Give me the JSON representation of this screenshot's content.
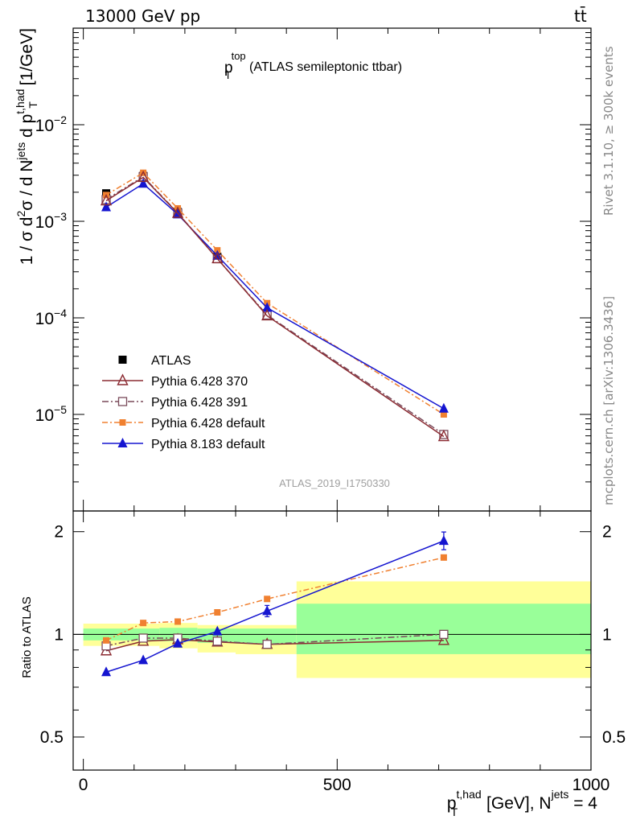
{
  "header": {
    "energy_label": "13000 GeV pp",
    "process_label": "tt̄"
  },
  "side_labels": {
    "rivet": "Rivet 3.1.10, ≥ 300k events",
    "mcplots": "mcplots.cern.ch [arXiv:1306.3436]"
  },
  "chart_data": [
    {
      "type": "line",
      "panel": "main",
      "title": {
        "main": "p",
        "sup": "top",
        "sub": "T",
        "rest": "(ATLAS semileptonic ttbar)"
      },
      "ylabel": {
        "a": "1 / σ d",
        "a_sup": "2",
        "b": "σ / d N",
        "b_sup": "jets",
        "c": " d p",
        "c_sup": "t,had",
        "c_sub": "T",
        "d": " [1/GeV]"
      },
      "yscale": "log",
      "ylim": [
        1e-06,
        0.1
      ],
      "xlim": [
        -20,
        1000
      ],
      "yticks": [
        {
          "value": 0.01,
          "base": "10",
          "exp": "−2"
        },
        {
          "value": 0.001,
          "base": "10",
          "exp": "−3"
        },
        {
          "value": 0.0001,
          "base": "10",
          "exp": "−4"
        },
        {
          "value": 1e-05,
          "base": "10",
          "exp": "−5"
        }
      ],
      "watermark": "ATLAS_2019_I1750330",
      "x": [
        45,
        118,
        186,
        264,
        362,
        710
      ],
      "series": [
        {
          "name": "ATLAS",
          "color": "#000000",
          "values": [
            0.00195,
            0.00295,
            0.00125,
            0.00043,
            0.000112,
            6.2e-06
          ]
        },
        {
          "name": "Pythia 6.428 370",
          "color": "#8b2b32",
          "values": [
            0.00163,
            0.00285,
            0.00121,
            0.00041,
            0.000105,
            5.9e-06
          ]
        },
        {
          "name": "Pythia 6.428 391",
          "color": "#7a4a5a",
          "values": [
            0.00168,
            0.0029,
            0.00122,
            0.00041,
            0.000107,
            6.2e-06
          ]
        },
        {
          "name": "Pythia 6.428 default",
          "color": "#f08030",
          "values": [
            0.00187,
            0.00318,
            0.00136,
            0.0005,
            0.000142,
            1e-05
          ]
        },
        {
          "name": "Pythia 8.183 default",
          "color": "#1515d0",
          "values": [
            0.0014,
            0.00245,
            0.00118,
            0.00044,
            0.000127,
            1.15e-05
          ]
        }
      ]
    },
    {
      "type": "line",
      "panel": "ratio",
      "ylabel": "Ratio to ATLAS",
      "yscale": "log",
      "ylim": [
        0.4,
        2.3
      ],
      "yticks": [
        {
          "value": 0.5,
          "label": "0.5"
        },
        {
          "value": 1,
          "label": "1"
        },
        {
          "value": 2,
          "label": "2"
        }
      ],
      "xticks": [
        {
          "value": 0,
          "label": "0"
        },
        {
          "value": 500,
          "label": "500"
        },
        {
          "value": 1000,
          "label": "1000"
        }
      ],
      "xlabel": {
        "a": "p",
        "a_sup": "t,had",
        "a_sub": "T",
        "b": " [GeV], N",
        "b_sup": "jets",
        "c": " = 4"
      },
      "bins": [
        {
          "lo": 0,
          "hi": 90,
          "yellow": [
            0.925,
            1.075
          ],
          "green": [
            0.96,
            1.04
          ]
        },
        {
          "lo": 90,
          "hi": 150,
          "yellow": [
            0.925,
            1.075
          ],
          "green": [
            0.96,
            1.04
          ]
        },
        {
          "lo": 150,
          "hi": 225,
          "yellow": [
            0.91,
            1.08
          ],
          "green": [
            0.955,
            1.045
          ]
        },
        {
          "lo": 225,
          "hi": 300,
          "yellow": [
            0.885,
            1.065
          ],
          "green": [
            0.945,
            1.04
          ]
        },
        {
          "lo": 300,
          "hi": 420,
          "yellow": [
            0.875,
            1.065
          ],
          "green": [
            0.94,
            1.04
          ]
        },
        {
          "lo": 420,
          "hi": 1000,
          "yellow": [
            0.745,
            1.43
          ],
          "green": [
            0.875,
            1.23
          ]
        }
      ],
      "series": [
        {
          "name": "Pythia 6.428 370",
          "values": [
            0.895,
            0.955,
            0.965,
            0.95,
            0.935,
            0.96
          ]
        },
        {
          "name": "Pythia 6.428 391",
          "values": [
            0.925,
            0.975,
            0.975,
            0.955,
            0.935,
            1.0
          ]
        },
        {
          "name": "Pythia 6.428 default",
          "values": [
            0.96,
            1.08,
            1.09,
            1.16,
            1.27,
            1.68
          ]
        },
        {
          "name": "Pythia 8.183 default",
          "values": [
            0.775,
            0.84,
            0.94,
            1.02,
            1.17,
            1.88
          ]
        }
      ]
    }
  ]
}
